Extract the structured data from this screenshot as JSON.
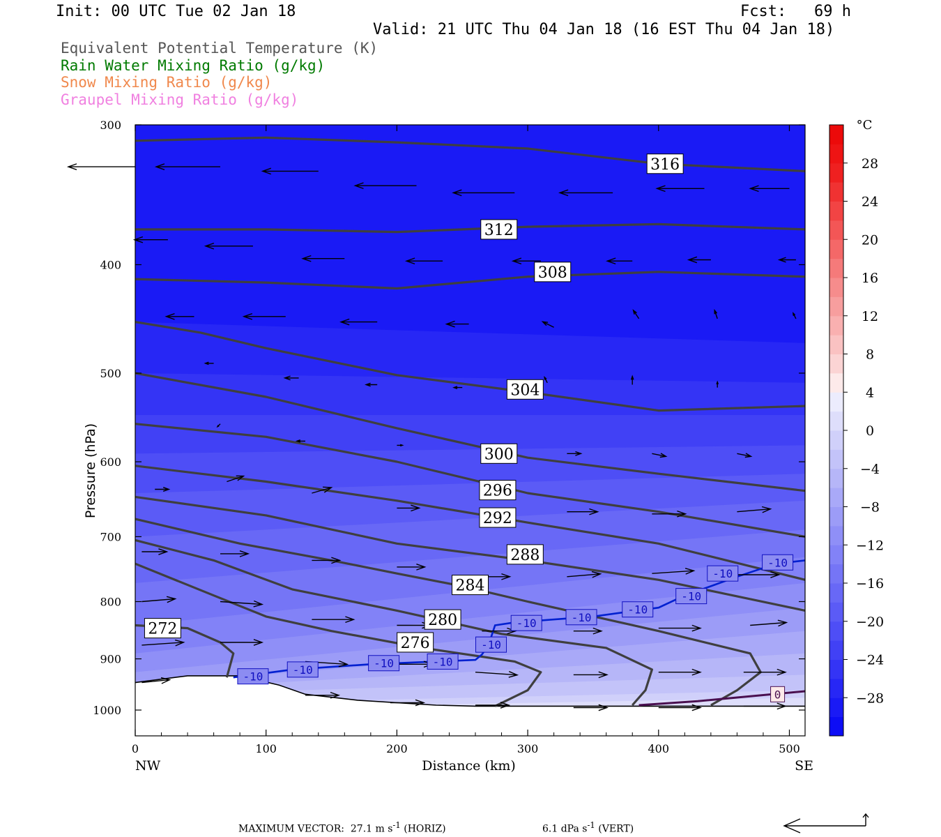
{
  "header": {
    "init": "Init: 00 UTC Tue 02 Jan 18",
    "fcst": "Fcst:   69 h",
    "valid": "Valid: 21 UTC Thu 04 Jan 18 (16 EST Thu 04 Jan 18)"
  },
  "legend": [
    {
      "label": "Equivalent Potential Temperature (K)",
      "color": "#555555"
    },
    {
      "label": "Rain Water Mixing Ratio (g/kg)",
      "color": "#007a00"
    },
    {
      "label": "Snow Mixing Ratio (g/kg)",
      "color": "#f0884c"
    },
    {
      "label": "Graupel Mixing Ratio (g/kg)",
      "color": "#f080e0"
    }
  ],
  "footer": {
    "horiz_label": "MAXIMUM VECTOR:  27.1 m s",
    "horiz_exp": "-1",
    "horiz_tail": " (HORIZ)",
    "vert_label": "6.1 dPa s",
    "vert_exp": "-1",
    "vert_tail": " (VERT)"
  },
  "chart_data": {
    "type": "cross-section",
    "title": "",
    "xlabel": "Distance (km)",
    "ylabel": "Pressure (hPa)",
    "xlim": [
      0,
      512
    ],
    "ylim": [
      1030,
      300
    ],
    "y_scale": "log-pressure",
    "x_ticks": [
      0,
      100,
      200,
      300,
      400,
      500
    ],
    "y_ticks": [
      300,
      400,
      500,
      600,
      700,
      800,
      900,
      1000
    ],
    "x_end_labels": {
      "left": "NW",
      "right": "SE"
    },
    "colorbar": {
      "unit": "°C",
      "labels": [
        28,
        24,
        20,
        16,
        12,
        8,
        4,
        0,
        -4,
        -8,
        -12,
        -16,
        -20,
        -24,
        -28
      ],
      "range": [
        -32,
        32
      ],
      "colors": [
        "#0d0df5",
        "#1a1af5",
        "#2727f5",
        "#3434f5",
        "#4141f5",
        "#4e4ef6",
        "#5b5bf6",
        "#6868f6",
        "#7575f6",
        "#8282f7",
        "#8f8ff7",
        "#9c9cf7",
        "#a9a9f8",
        "#b6b6f8",
        "#c3c3f9",
        "#d0d0fa",
        "#dedefb",
        "#ececfd",
        "#fdeaea",
        "#fbd4d4",
        "#fac2c2",
        "#f9b0b0",
        "#f79e9e",
        "#f68c8c",
        "#f57a7a",
        "#f46868",
        "#f35656",
        "#f24444",
        "#f03232",
        "#ef2020",
        "#ee1414",
        "#ec0a0a"
      ]
    },
    "shading_bands": [
      {
        "temp": -30,
        "p_left": 300,
        "p_right": 300
      },
      {
        "temp": -28,
        "p_left": 450,
        "p_right": 470
      },
      {
        "temp": -26,
        "p_left": 500,
        "p_right": 510
      },
      {
        "temp": -24,
        "p_left": 545,
        "p_right": 545
      },
      {
        "temp": -22,
        "p_left": 590,
        "p_right": 580
      },
      {
        "temp": -20,
        "p_left": 640,
        "p_right": 615
      },
      {
        "temp": -18,
        "p_left": 700,
        "p_right": 650
      },
      {
        "temp": -16,
        "p_left": 770,
        "p_right": 690
      },
      {
        "temp": -14,
        "p_left": 840,
        "p_right": 730
      },
      {
        "temp": -12,
        "p_left": 890,
        "p_right": 770
      },
      {
        "temp": -10,
        "p_left": 925,
        "p_right": 810
      },
      {
        "temp": -8,
        "p_left": 950,
        "p_right": 850
      },
      {
        "temp": -6,
        "p_left": 960,
        "p_right": 890
      },
      {
        "temp": -4,
        "p_left": 970,
        "p_right": 930
      },
      {
        "temp": -2,
        "p_left": 990,
        "p_right": 960
      },
      {
        "temp": 0,
        "p_left": 1000,
        "p_right": 975
      }
    ],
    "theta_e_contours": [
      {
        "label": "316",
        "label_x": 405,
        "label_p": 325,
        "points": [
          [
            0,
            310
          ],
          [
            100,
            308
          ],
          [
            200,
            311
          ],
          [
            300,
            315
          ],
          [
            400,
            325
          ],
          [
            512,
            330
          ]
        ]
      },
      {
        "label": "312",
        "label_x": 278,
        "label_p": 372,
        "points": [
          [
            0,
            372
          ],
          [
            100,
            372
          ],
          [
            200,
            374
          ],
          [
            300,
            370
          ],
          [
            400,
            368
          ],
          [
            512,
            372
          ]
        ]
      },
      {
        "label": "308",
        "label_x": 319,
        "label_p": 406,
        "points": [
          [
            0,
            412
          ],
          [
            100,
            415
          ],
          [
            200,
            420
          ],
          [
            300,
            410
          ],
          [
            400,
            406
          ],
          [
            512,
            410
          ]
        ]
      },
      {
        "label": "304",
        "label_x": 298,
        "label_p": 517,
        "points": [
          [
            0,
            450
          ],
          [
            50,
            460
          ],
          [
            100,
            475
          ],
          [
            200,
            502
          ],
          [
            300,
            520
          ],
          [
            400,
            540
          ],
          [
            512,
            535
          ]
        ]
      },
      {
        "label": "300",
        "label_x": 278,
        "label_p": 590,
        "points": [
          [
            0,
            500
          ],
          [
            100,
            525
          ],
          [
            200,
            560
          ],
          [
            300,
            595
          ],
          [
            400,
            615
          ],
          [
            512,
            637
          ]
        ]
      },
      {
        "label": "296",
        "label_x": 277,
        "label_p": 636,
        "points": [
          [
            0,
            555
          ],
          [
            100,
            570
          ],
          [
            200,
            600
          ],
          [
            300,
            640
          ],
          [
            400,
            665
          ],
          [
            512,
            700
          ]
        ]
      },
      {
        "label": "292",
        "label_x": 277,
        "label_p": 673,
        "points": [
          [
            0,
            605
          ],
          [
            100,
            625
          ],
          [
            200,
            650
          ],
          [
            300,
            680
          ],
          [
            400,
            710
          ],
          [
            512,
            765
          ]
        ]
      },
      {
        "label": "288",
        "label_x": 298,
        "label_p": 726,
        "points": [
          [
            0,
            645
          ],
          [
            100,
            670
          ],
          [
            200,
            710
          ],
          [
            300,
            735
          ],
          [
            400,
            765
          ],
          [
            512,
            815
          ]
        ]
      },
      {
        "label": "284",
        "label_x": 256,
        "label_p": 773,
        "points": [
          [
            0,
            675
          ],
          [
            80,
            710
          ],
          [
            150,
            735
          ],
          [
            200,
            755
          ],
          [
            250,
            775
          ],
          [
            300,
            800
          ],
          [
            400,
            850
          ],
          [
            470,
            890
          ],
          [
            478,
            925
          ],
          [
            460,
            960
          ],
          [
            440,
            990
          ]
        ]
      },
      {
        "label": "280",
        "label_x": 235,
        "label_p": 830,
        "points": [
          [
            0,
            705
          ],
          [
            60,
            735
          ],
          [
            120,
            780
          ],
          [
            200,
            815
          ],
          [
            280,
            855
          ],
          [
            360,
            880
          ],
          [
            395,
            920
          ],
          [
            390,
            960
          ],
          [
            380,
            990
          ]
        ]
      },
      {
        "label": "276",
        "label_x": 214,
        "label_p": 870,
        "points": [
          [
            0,
            740
          ],
          [
            60,
            790
          ],
          [
            100,
            825
          ],
          [
            150,
            850
          ],
          [
            220,
            880
          ],
          [
            290,
            905
          ],
          [
            310,
            925
          ],
          [
            300,
            960
          ],
          [
            275,
            992
          ]
        ]
      },
      {
        "label": "272",
        "label_x": 21,
        "label_p": 845,
        "points": [
          [
            0,
            840
          ],
          [
            40,
            845
          ],
          [
            65,
            870
          ],
          [
            75,
            890
          ],
          [
            70,
            935
          ]
        ]
      }
    ],
    "isotherm_minus10": {
      "label": "-10",
      "points": [
        [
          75,
          935
        ],
        [
          120,
          920
        ],
        [
          180,
          910
        ],
        [
          230,
          905
        ],
        [
          260,
          902
        ],
        [
          265,
          892
        ],
        [
          270,
          875
        ],
        [
          275,
          840
        ],
        [
          290,
          835
        ],
        [
          350,
          825
        ],
        [
          400,
          810
        ],
        [
          420,
          790
        ],
        [
          440,
          775
        ],
        [
          460,
          760
        ],
        [
          490,
          740
        ],
        [
          512,
          735
        ]
      ],
      "label_positions": [
        [
          90,
          933
        ],
        [
          128,
          920
        ],
        [
          190,
          908
        ],
        [
          235,
          905
        ],
        [
          272,
          874
        ],
        [
          299,
          836
        ],
        [
          341,
          826
        ],
        [
          384,
          813
        ],
        [
          425,
          791
        ],
        [
          449,
          755
        ],
        [
          491,
          738
        ]
      ]
    },
    "isotherm_zero": {
      "label": "0",
      "points": [
        [
          385,
          990
        ],
        [
          430,
          982
        ],
        [
          470,
          972
        ],
        [
          512,
          962
        ]
      ],
      "label_positions": [
        [
          491,
          968
        ]
      ]
    },
    "terrain": [
      [
        0,
        945
      ],
      [
        40,
        932
      ],
      [
        80,
        932
      ],
      [
        110,
        950
      ],
      [
        130,
        968
      ],
      [
        170,
        980
      ],
      [
        230,
        990
      ],
      [
        260,
        992
      ],
      [
        300,
        992
      ],
      [
        350,
        992
      ],
      [
        400,
        992
      ],
      [
        450,
        992
      ],
      [
        512,
        992
      ]
    ],
    "wind_vectors": [
      {
        "x": 0,
        "p": 327,
        "u": -24,
        "w": 0
      },
      {
        "x": 65,
        "p": 327,
        "u": -23,
        "w": 0
      },
      {
        "x": 140,
        "p": 330,
        "u": -20,
        "w": 0
      },
      {
        "x": 215,
        "p": 340,
        "u": -22,
        "w": 0
      },
      {
        "x": 290,
        "p": 345,
        "u": -22,
        "w": 0
      },
      {
        "x": 365,
        "p": 345,
        "u": -19,
        "w": 0
      },
      {
        "x": 435,
        "p": 342,
        "u": -17,
        "w": 0
      },
      {
        "x": 500,
        "p": 342,
        "u": -14,
        "w": 0
      },
      {
        "x": 25,
        "p": 380,
        "u": -12,
        "w": 0
      },
      {
        "x": 90,
        "p": 385,
        "u": -17,
        "w": 0
      },
      {
        "x": 160,
        "p": 395,
        "u": -15,
        "w": 0
      },
      {
        "x": 235,
        "p": 397,
        "u": -13,
        "w": 0
      },
      {
        "x": 310,
        "p": 397,
        "u": -10,
        "w": 0
      },
      {
        "x": 380,
        "p": 397,
        "u": -9,
        "w": 0
      },
      {
        "x": 440,
        "p": 396,
        "u": -8,
        "w": 0
      },
      {
        "x": 505,
        "p": 396,
        "u": -6,
        "w": 0
      },
      {
        "x": 45,
        "p": 445,
        "u": -10,
        "w": 0
      },
      {
        "x": 115,
        "p": 445,
        "u": -15,
        "w": 0
      },
      {
        "x": 185,
        "p": 450,
        "u": -13,
        "w": 0
      },
      {
        "x": 255,
        "p": 452,
        "u": -8,
        "w": 0
      },
      {
        "x": 320,
        "p": 455,
        "u": -4,
        "w": 2
      },
      {
        "x": 385,
        "p": 447,
        "u": -2,
        "w": 3
      },
      {
        "x": 445,
        "p": 447,
        "u": -1,
        "w": 3
      },
      {
        "x": 505,
        "p": 447,
        "u": -1,
        "w": 2
      },
      {
        "x": 60,
        "p": 490,
        "u": -3,
        "w": 0
      },
      {
        "x": 125,
        "p": 505,
        "u": -5,
        "w": 0
      },
      {
        "x": 185,
        "p": 512,
        "u": -4,
        "w": 0
      },
      {
        "x": 250,
        "p": 515,
        "u": -3,
        "w": 0
      },
      {
        "x": 315,
        "p": 510,
        "u": -1,
        "w": 2
      },
      {
        "x": 380,
        "p": 512,
        "u": 0,
        "w": 3
      },
      {
        "x": 445,
        "p": 515,
        "u": 0,
        "w": 2
      },
      {
        "x": 65,
        "p": 555,
        "u": -1,
        "w": -1
      },
      {
        "x": 130,
        "p": 575,
        "u": -3,
        "w": 0
      },
      {
        "x": 200,
        "p": 580,
        "u": 2,
        "w": 0
      },
      {
        "x": 265,
        "p": 590,
        "u": 3,
        "w": 0
      },
      {
        "x": 330,
        "p": 590,
        "u": 5,
        "w": 0
      },
      {
        "x": 395,
        "p": 590,
        "u": 5,
        "w": -1
      },
      {
        "x": 460,
        "p": 590,
        "u": 5,
        "w": -1
      },
      {
        "x": 15,
        "p": 635,
        "u": 5,
        "w": 0
      },
      {
        "x": 70,
        "p": 625,
        "u": 6,
        "w": 2
      },
      {
        "x": 135,
        "p": 640,
        "u": 7,
        "w": 2
      },
      {
        "x": 200,
        "p": 660,
        "u": 8,
        "w": 0
      },
      {
        "x": 265,
        "p": 665,
        "u": 11,
        "w": -1
      },
      {
        "x": 330,
        "p": 665,
        "u": 11,
        "w": 0
      },
      {
        "x": 395,
        "p": 668,
        "u": 12,
        "w": 0
      },
      {
        "x": 460,
        "p": 665,
        "u": 12,
        "w": 1
      },
      {
        "x": 5,
        "p": 722,
        "u": 9,
        "w": 0
      },
      {
        "x": 65,
        "p": 725,
        "u": 10,
        "w": 0
      },
      {
        "x": 135,
        "p": 735,
        "u": 10,
        "w": 0
      },
      {
        "x": 200,
        "p": 745,
        "u": 10,
        "w": 0
      },
      {
        "x": 265,
        "p": 760,
        "u": 10,
        "w": 0
      },
      {
        "x": 330,
        "p": 760,
        "u": 12,
        "w": 1
      },
      {
        "x": 395,
        "p": 755,
        "u": 15,
        "w": 1
      },
      {
        "x": 460,
        "p": 757,
        "u": 15,
        "w": 0
      },
      {
        "x": 5,
        "p": 800,
        "u": 12,
        "w": 1
      },
      {
        "x": 65,
        "p": 800,
        "u": 15,
        "w": -1
      },
      {
        "x": 135,
        "p": 830,
        "u": 15,
        "w": 0
      },
      {
        "x": 200,
        "p": 840,
        "u": 12,
        "w": 0
      },
      {
        "x": 265,
        "p": 850,
        "u": 12,
        "w": 0
      },
      {
        "x": 335,
        "p": 850,
        "u": 10,
        "w": 0
      },
      {
        "x": 400,
        "p": 845,
        "u": 15,
        "w": 0
      },
      {
        "x": 470,
        "p": 840,
        "u": 13,
        "w": 1
      },
      {
        "x": 5,
        "p": 875,
        "u": 15,
        "w": 1
      },
      {
        "x": 65,
        "p": 870,
        "u": 15,
        "w": 0
      },
      {
        "x": 130,
        "p": 905,
        "u": 15,
        "w": -1
      },
      {
        "x": 195,
        "p": 910,
        "u": 15,
        "w": 0
      },
      {
        "x": 260,
        "p": 925,
        "u": 15,
        "w": -1
      },
      {
        "x": 335,
        "p": 930,
        "u": 12,
        "w": 0
      },
      {
        "x": 400,
        "p": 925,
        "u": 15,
        "w": 0
      },
      {
        "x": 465,
        "p": 925,
        "u": 15,
        "w": 0
      },
      {
        "x": 5,
        "p": 945,
        "u": 10,
        "w": 1
      },
      {
        "x": 130,
        "p": 970,
        "u": 12,
        "w": 0
      },
      {
        "x": 195,
        "p": 985,
        "u": 12,
        "w": 0
      },
      {
        "x": 260,
        "p": 990,
        "u": 12,
        "w": 0
      },
      {
        "x": 335,
        "p": 995,
        "u": 12,
        "w": 0
      },
      {
        "x": 400,
        "p": 995,
        "u": 15,
        "w": 0
      },
      {
        "x": 465,
        "p": 992,
        "u": 15,
        "w": 0
      }
    ]
  }
}
